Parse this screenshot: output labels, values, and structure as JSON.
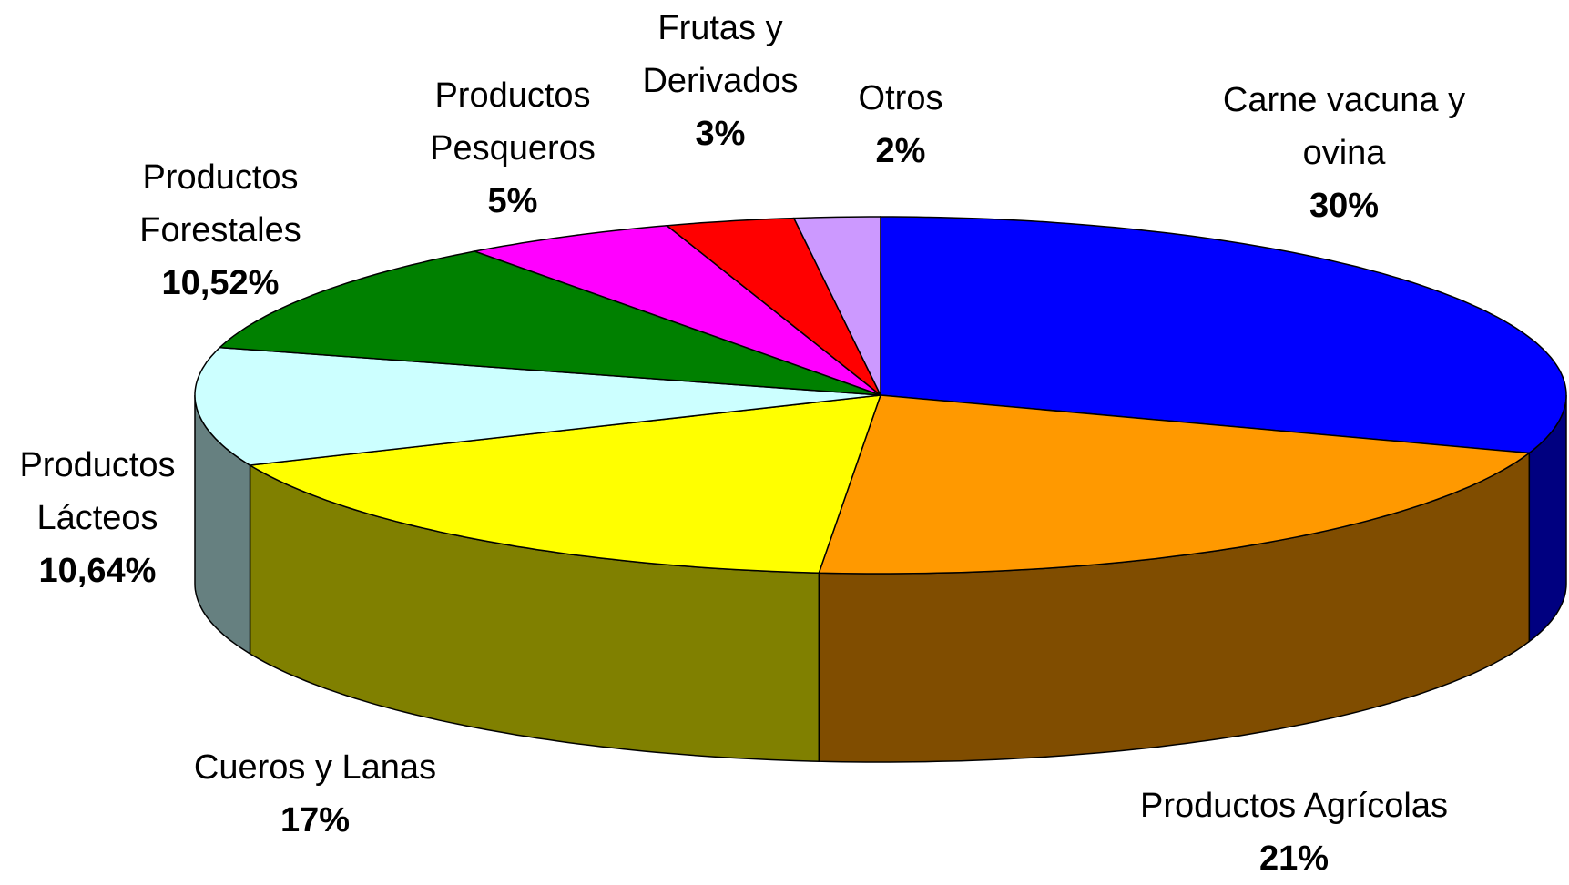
{
  "chart_data": {
    "type": "pie3d",
    "categories": [
      "Carne vacuna y ovina",
      "Productos Agrícolas",
      "Cueros y Lanas",
      "Productos Lácteos",
      "Productos Forestales",
      "Productos Pesqueros",
      "Frutas y Derivados",
      "Otros"
    ],
    "values": [
      30,
      21,
      17,
      10.64,
      10.52,
      5,
      3,
      2
    ],
    "value_labels": [
      "30%",
      "21%",
      "17%",
      "10,64%",
      "10,52%",
      "5%",
      "3%",
      "2%"
    ],
    "colors": [
      "#0000ff",
      "#ff9900",
      "#ffff00",
      "#ccffff",
      "#008000",
      "#ff00ff",
      "#ff0000",
      "#cc99ff"
    ]
  }
}
